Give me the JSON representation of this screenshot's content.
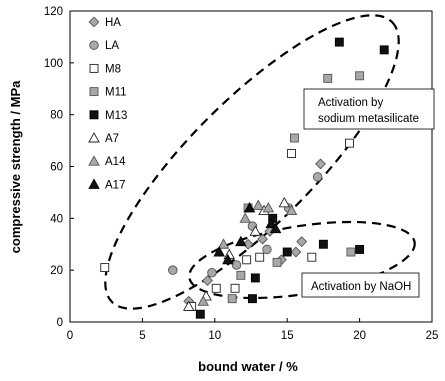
{
  "chart_data": {
    "type": "scatter",
    "title": "",
    "xlabel": "bound water / %",
    "ylabel": "compressive strength / MPa",
    "xlim": [
      0,
      25
    ],
    "ylim": [
      0,
      120
    ],
    "xticks": [
      0,
      5,
      10,
      15,
      20,
      25
    ],
    "yticks": [
      0,
      20,
      40,
      60,
      80,
      100,
      120
    ],
    "grid": false,
    "legend_position": "top-left",
    "series": [
      {
        "name": "HA",
        "marker": "diamond",
        "fill": "#a8a8a8",
        "stroke": "#555555",
        "x": [
          8.2,
          9.5,
          12.3,
          13.3,
          13.8,
          14.6,
          15.6,
          16.0,
          17.3
        ],
        "y": [
          8,
          16,
          30,
          32,
          35,
          24,
          27,
          31,
          61
        ]
      },
      {
        "name": "LA",
        "marker": "circle",
        "fill": "#a8a8a8",
        "stroke": "#555555",
        "x": [
          7.1,
          9.8,
          11.5,
          12.6,
          13.6,
          15.1,
          17.1
        ],
        "y": [
          20,
          19,
          22,
          37,
          28,
          44,
          56
        ]
      },
      {
        "name": "M8",
        "marker": "square",
        "fill": "#ffffff",
        "stroke": "#222222",
        "x": [
          2.4,
          8.4,
          10.1,
          11.4,
          12.2,
          13.1,
          15.3,
          16.7,
          19.3
        ],
        "y": [
          21,
          6,
          13,
          13,
          24,
          25,
          65,
          25,
          69
        ]
      },
      {
        "name": "M11",
        "marker": "square",
        "fill": "#a8a8a8",
        "stroke": "#555555",
        "x": [
          11.2,
          11.8,
          12.3,
          14.3,
          15.5,
          17.8,
          19.4,
          20.0
        ],
        "y": [
          9,
          18,
          44,
          23,
          71,
          94,
          27,
          95
        ]
      },
      {
        "name": "M13",
        "marker": "square",
        "fill": "#111111",
        "stroke": "#000000",
        "x": [
          9.0,
          12.6,
          12.8,
          14.0,
          15.0,
          17.5,
          18.6,
          20.0,
          21.7
        ],
        "y": [
          3,
          9,
          17,
          40,
          27,
          30,
          108,
          28,
          105
        ]
      },
      {
        "name": "A7",
        "marker": "triangle",
        "fill": "#ffffff",
        "stroke": "#222222",
        "x": [
          8.2,
          9.4,
          11.0,
          12.8,
          13.4,
          14.8
        ],
        "y": [
          6,
          10,
          26,
          35,
          43,
          46
        ]
      },
      {
        "name": "A14",
        "marker": "triangle",
        "fill": "#a8a8a8",
        "stroke": "#555555",
        "x": [
          9.2,
          10.6,
          12.1,
          13.0,
          13.7,
          15.3
        ],
        "y": [
          8,
          30,
          40,
          45,
          44,
          43
        ]
      },
      {
        "name": "A17",
        "marker": "triangle",
        "fill": "#111111",
        "stroke": "#000000",
        "x": [
          10.3,
          10.9,
          11.8,
          12.4,
          13.9,
          14.2
        ],
        "y": [
          27,
          24,
          31,
          44,
          38,
          36
        ]
      }
    ],
    "annotations": [
      {
        "text_lines": [
          "Activation by",
          "sodium metasilicate"
        ],
        "region": "upper-right"
      },
      {
        "text_lines": [
          "Activation by NaOH"
        ],
        "region": "lower-right"
      }
    ]
  }
}
